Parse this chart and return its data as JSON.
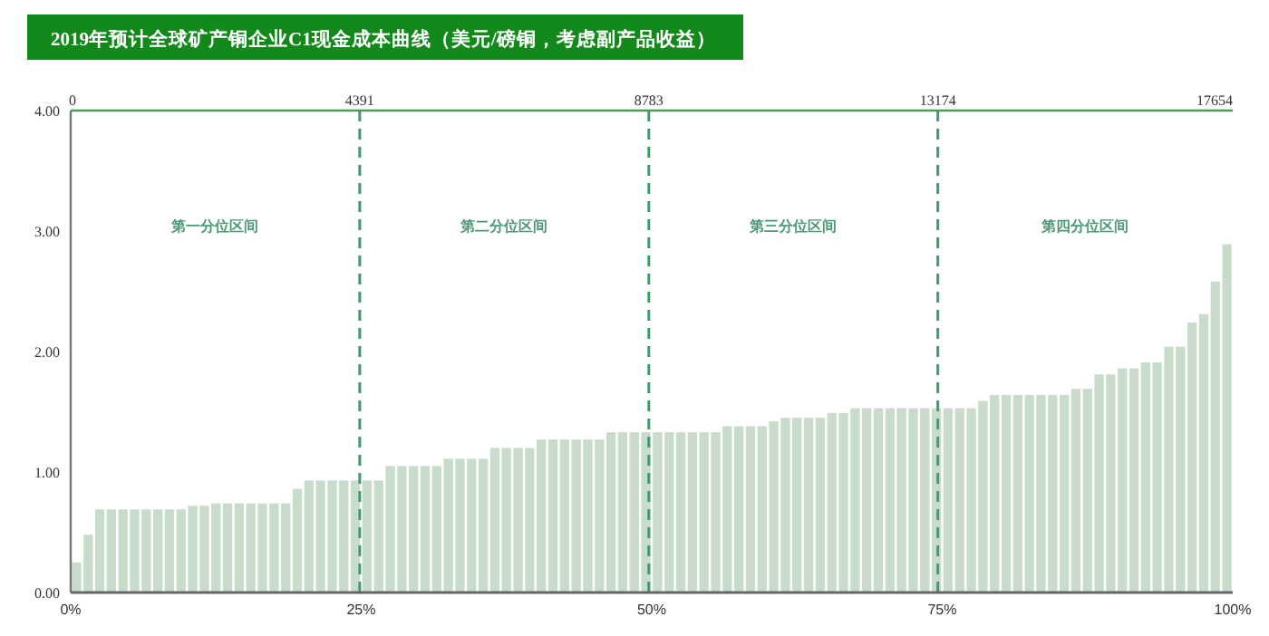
{
  "chart_data": {
    "type": "bar",
    "title": "2019年预计全球矿产铜企业C1现金成本曲线（美元/磅铜，考虑副产品收益）",
    "x": [
      0.5,
      1.5,
      2.5,
      3.5,
      4.5,
      5.5,
      6.5,
      7.5,
      8.5,
      9.5,
      10.5,
      11.5,
      12.5,
      13.5,
      14.5,
      15.5,
      16.5,
      17.5,
      18.5,
      19.5,
      20.5,
      21.5,
      22.5,
      23.5,
      24.5,
      25.5,
      26.5,
      27.5,
      28.5,
      29.5,
      30.5,
      31.5,
      32.5,
      33.5,
      34.5,
      35.5,
      36.5,
      37.5,
      38.5,
      39.5,
      40.5,
      41.5,
      42.5,
      43.5,
      44.5,
      45.5,
      46.5,
      47.5,
      48.5,
      49.5,
      50.5,
      51.5,
      52.5,
      53.5,
      54.5,
      55.5,
      56.5,
      57.5,
      58.5,
      59.5,
      60.5,
      61.5,
      62.5,
      63.5,
      64.5,
      65.5,
      66.5,
      67.5,
      68.5,
      69.5,
      70.5,
      71.5,
      72.5,
      73.5,
      74.5,
      75.5,
      76.5,
      77.5,
      78.5,
      79.5,
      80.5,
      81.5,
      82.5,
      83.5,
      84.5,
      85.5,
      86.5,
      87.5,
      88.5,
      89.5,
      90.5,
      91.5,
      92.5,
      93.5,
      94.5,
      95.5,
      96.5,
      97.5,
      98.5,
      99.5
    ],
    "values": [
      0.25,
      0.48,
      0.69,
      0.69,
      0.69,
      0.69,
      0.69,
      0.69,
      0.69,
      0.69,
      0.72,
      0.72,
      0.74,
      0.74,
      0.74,
      0.74,
      0.74,
      0.74,
      0.74,
      0.86,
      0.93,
      0.93,
      0.93,
      0.93,
      0.93,
      0.93,
      0.93,
      1.05,
      1.05,
      1.05,
      1.05,
      1.05,
      1.11,
      1.11,
      1.11,
      1.11,
      1.2,
      1.2,
      1.2,
      1.2,
      1.27,
      1.27,
      1.27,
      1.27,
      1.27,
      1.27,
      1.33,
      1.33,
      1.33,
      1.33,
      1.33,
      1.33,
      1.33,
      1.33,
      1.33,
      1.33,
      1.38,
      1.38,
      1.38,
      1.38,
      1.42,
      1.45,
      1.45,
      1.45,
      1.45,
      1.49,
      1.49,
      1.53,
      1.53,
      1.53,
      1.53,
      1.53,
      1.53,
      1.53,
      1.53,
      1.53,
      1.53,
      1.53,
      1.59,
      1.64,
      1.64,
      1.64,
      1.64,
      1.64,
      1.64,
      1.64,
      1.69,
      1.69,
      1.81,
      1.81,
      1.86,
      1.86,
      1.91,
      1.91,
      2.04,
      2.04,
      2.24,
      2.31,
      2.58,
      2.89
    ],
    "color": "#c8dccb",
    "xlim": [
      0,
      100
    ],
    "xticks": [
      {
        "value": 0,
        "label": "0%"
      },
      {
        "value": 25,
        "label": "25%"
      },
      {
        "value": 50,
        "label": "50%"
      },
      {
        "value": 75,
        "label": "75%"
      },
      {
        "value": 100,
        "label": "100%"
      }
    ],
    "ylim": [
      0,
      4
    ],
    "yticks": [
      {
        "value": 0,
        "label": "0.00"
      },
      {
        "value": 1,
        "label": "1.00"
      },
      {
        "value": 2,
        "label": "2.00"
      },
      {
        "value": 3,
        "label": "3.00"
      },
      {
        "value": 4,
        "label": "4.00"
      }
    ],
    "x2lim": [
      0,
      17654
    ],
    "x2ticks": [
      0,
      4391,
      8783,
      13174,
      17654
    ],
    "ref_lines": [
      {
        "axis": "x2",
        "value": 4391,
        "color": "#3f9a6c",
        "line_style": "dashed"
      },
      {
        "axis": "x2",
        "value": 8783,
        "color": "#3f9a6c",
        "line_style": "dashed"
      },
      {
        "axis": "x2",
        "value": 13174,
        "color": "#3f9a6c",
        "line_style": "dashed"
      }
    ],
    "annotations": [
      "第一分位区间",
      "第二分位区间",
      "第三分位区间",
      "第四分位区间"
    ]
  }
}
